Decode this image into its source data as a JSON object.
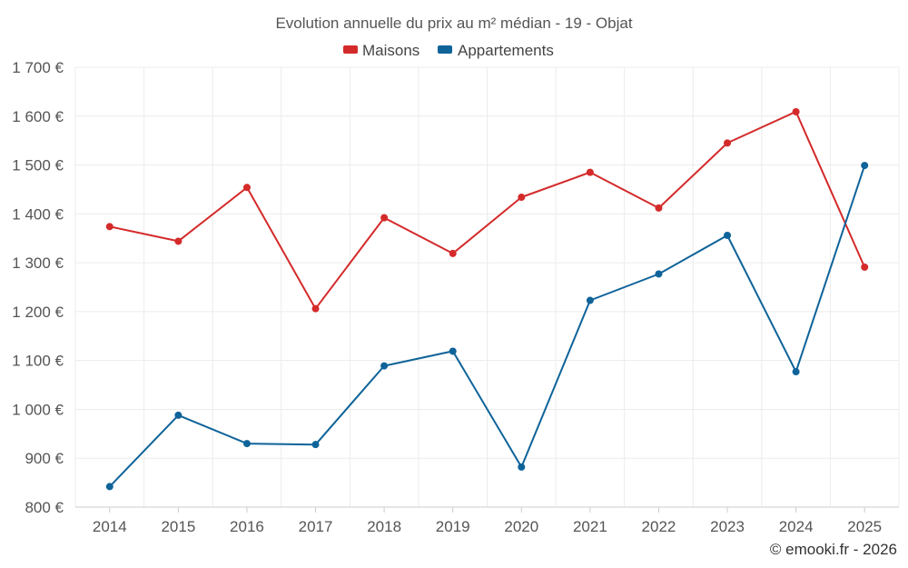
{
  "chart_data": {
    "type": "line",
    "title": "Evolution annuelle du prix au m² médian - 19 - Objat",
    "categories": [
      "2014",
      "2015",
      "2016",
      "2017",
      "2018",
      "2019",
      "2020",
      "2021",
      "2022",
      "2023",
      "2024",
      "2025"
    ],
    "series": [
      {
        "name": "Maisons",
        "color": "#d42a2a",
        "values": [
          1374,
          1344,
          1454,
          1206,
          1392,
          1319,
          1434,
          1485,
          1412,
          1545,
          1609,
          1291
        ]
      },
      {
        "name": "Appartements",
        "color": "#0e6399",
        "values": [
          842,
          988,
          930,
          928,
          1089,
          1119,
          882,
          1223,
          1277,
          1356,
          1077,
          1499
        ]
      }
    ],
    "ylim": [
      800,
      1700
    ],
    "yticks": [
      800,
      900,
      1000,
      1100,
      1200,
      1300,
      1400,
      1500,
      1600,
      1700
    ],
    "ytick_labels": [
      "800 €",
      "900 €",
      "1 000 €",
      "1 100 €",
      "1 200 €",
      "1 300 €",
      "1 400 €",
      "1 500 €",
      "1 600 €",
      "1 700 €"
    ],
    "xlabel": "",
    "ylabel": "",
    "grid": true,
    "legend_position": "top-center"
  },
  "credit": "© emooki.fr - 2026"
}
